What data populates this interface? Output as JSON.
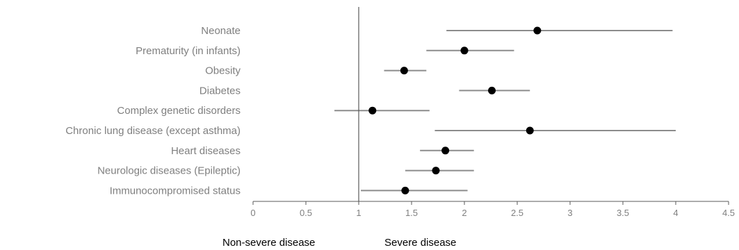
{
  "chart_data": {
    "type": "scatter",
    "subtype": "forest-plot",
    "title": "",
    "xlabel": "",
    "ylabel": "",
    "xlim": [
      0,
      4.5
    ],
    "x_ticks": [
      "0",
      "0.5",
      "1",
      "1.5",
      "2",
      "2.5",
      "3",
      "3.5",
      "4",
      "4.5"
    ],
    "reference_line_x": 1,
    "grid": false,
    "legend": "none",
    "categories": [
      "Neonate",
      "Prematurity (in infants)",
      "Obesity",
      "Diabetes",
      "Complex genetic disorders",
      "Chronic lung disease (except asthma)",
      "Heart diseases",
      "Neurologic diseases (Epileptic)",
      "Immunocompromised status"
    ],
    "series": [
      {
        "estimate": [
          2.69,
          2.0,
          1.43,
          2.26,
          1.13,
          2.62,
          1.82,
          1.73,
          1.44
        ],
        "ci_low": [
          1.83,
          1.64,
          1.24,
          1.95,
          0.77,
          1.72,
          1.58,
          1.44,
          1.02
        ],
        "ci_high": [
          3.97,
          2.47,
          1.64,
          2.62,
          1.67,
          4.0,
          2.09,
          2.09,
          2.03
        ]
      }
    ],
    "colors": {
      "ci_line": "#8c8c8c",
      "point": "#000000",
      "axis": "#595959",
      "label": "#7f7f7f"
    }
  },
  "bottom_labels": {
    "left": "Non-severe disease",
    "right": "Severe disease"
  }
}
